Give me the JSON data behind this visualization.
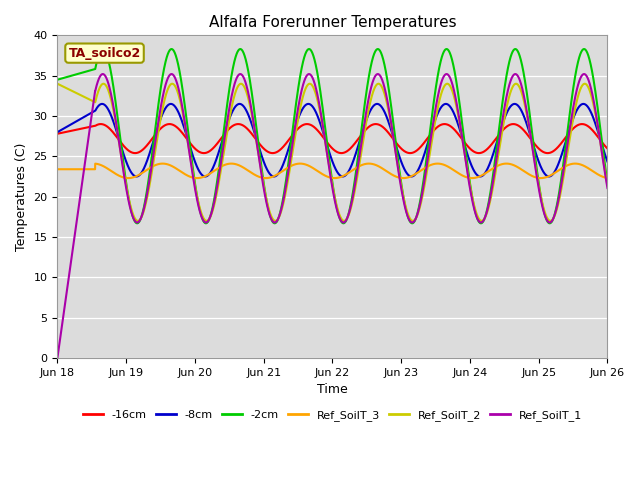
{
  "title": "Alfalfa Forerunner Temperatures",
  "xlabel": "Time",
  "ylabel": "Temperatures (C)",
  "ylim": [
    0,
    40
  ],
  "annotation_text": "TA_soilco2",
  "annotation_color": "#8B0000",
  "annotation_bg": "#FFFFCC",
  "annotation_border": "#999900",
  "bg_color": "#DCDCDC",
  "fig_color": "#FFFFFF",
  "legend_entries": [
    "-16cm",
    "-8cm",
    "-2cm",
    "Ref_SoilT_3",
    "Ref_SoilT_2",
    "Ref_SoilT_1"
  ],
  "line_colors": [
    "#FF0000",
    "#0000CC",
    "#00CC00",
    "#FFA500",
    "#CCCC00",
    "#AA00AA"
  ],
  "tick_labels": [
    "Jun 18",
    "Jun 19",
    "Jun 20",
    "Jun 21",
    "Jun 22",
    "Jun 23",
    "Jun 24",
    "Jun 25",
    "Jun 26"
  ],
  "yticks": [
    0,
    5,
    10,
    15,
    20,
    25,
    30,
    35,
    40
  ],
  "linewidth": 1.5
}
